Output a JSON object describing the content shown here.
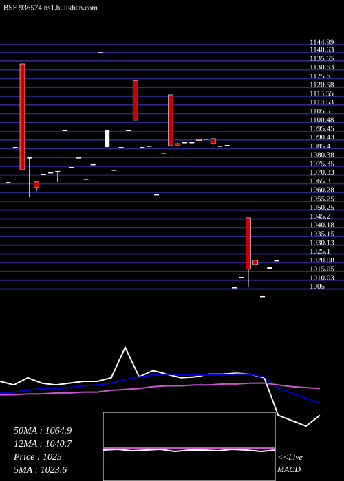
{
  "chart_data": [
    {
      "type": "candlestick",
      "title": "BSE 936574 ns1.bullkhan.com",
      "ylim": [
        999.3,
        1152.9
      ],
      "yticks": [
        1144.99,
        1140.63,
        1135.65,
        1130.63,
        1125.6,
        1120.58,
        1115.55,
        1110.53,
        1105.5,
        1100.48,
        1095.45,
        1090.43,
        1085.4,
        1080.38,
        1075.35,
        1070.33,
        1065.3,
        1060.28,
        1055.25,
        1050.25,
        1045.2,
        1040.18,
        1035.15,
        1030.13,
        1025.1,
        1020.08,
        1015.05,
        1010.03,
        1005
      ],
      "grid": true,
      "grid_color": "#2a2a8c",
      "up_color": "#ffffff",
      "down_color": "#cc0000",
      "candles": [
        {
          "open": 1066.2,
          "high": 1066.2,
          "low": 1066.2,
          "close": 1066.2
        },
        {
          "open": 1086.3,
          "high": 1086.3,
          "low": 1086.3,
          "close": 1086.3
        },
        {
          "open": 1134,
          "high": 1134,
          "low": 1073.3,
          "close": 1073.3
        },
        {
          "open": 1080.4,
          "high": 1080.4,
          "low": 1057.6,
          "close": 1080.4
        },
        {
          "open": 1066.3,
          "high": 1066.3,
          "low": 1061,
          "close": 1063.1
        },
        {
          "open": 1071,
          "high": 1071,
          "low": 1071,
          "close": 1071
        },
        {
          "open": 1071.8,
          "high": 1071.8,
          "low": 1071.8,
          "close": 1071.8
        },
        {
          "open": 1071.8,
          "high": 1072.6,
          "low": 1066.2,
          "close": 1072.6
        },
        {
          "open": 1096.2,
          "high": 1096.2,
          "low": 1096.2,
          "close": 1096.2
        },
        {
          "open": 1074.9,
          "high": 1074.9,
          "low": 1074.9,
          "close": 1074.9
        },
        {
          "open": 1080.4,
          "high": 1080.4,
          "low": 1080.4,
          "close": 1080.4
        },
        {
          "open": 1068.2,
          "high": 1068.2,
          "low": 1068.2,
          "close": 1068.2
        },
        {
          "open": 1076.5,
          "high": 1076.5,
          "low": 1076.5,
          "close": 1076.5
        },
        {
          "open": 1141,
          "high": 1141,
          "low": 1141,
          "close": 1141
        },
        {
          "open": 1086.3,
          "high": 1096.2,
          "low": 1086.3,
          "close": 1096.2
        },
        {
          "open": 1073.3,
          "high": 1073.3,
          "low": 1073.3,
          "close": 1073.3
        },
        {
          "open": 1086.3,
          "high": 1086.3,
          "low": 1086.3,
          "close": 1086.3
        },
        {
          "open": 1096.2,
          "high": 1096.2,
          "low": 1096.2,
          "close": 1096.2
        },
        {
          "open": 1124.5,
          "high": 1124.5,
          "low": 1101.7,
          "close": 1101.7
        },
        {
          "open": 1086.3,
          "high": 1086.3,
          "low": 1086.3,
          "close": 1086.3
        },
        {
          "open": 1087.1,
          "high": 1087.1,
          "low": 1087.1,
          "close": 1087.1
        },
        {
          "open": 1059.2,
          "high": 1059.2,
          "low": 1059.2,
          "close": 1059.2
        },
        {
          "open": 1083.2,
          "high": 1083.2,
          "low": 1083.2,
          "close": 1083.2
        },
        {
          "open": 1116.3,
          "high": 1116.3,
          "low": 1087.1,
          "close": 1087.1
        },
        {
          "open": 1088.3,
          "high": 1089.1,
          "low": 1087.1,
          "close": 1087.1
        },
        {
          "open": 1089.1,
          "high": 1089.1,
          "low": 1089.1,
          "close": 1089.1
        },
        {
          "open": 1089.1,
          "high": 1089.1,
          "low": 1089.1,
          "close": 1089.1
        },
        {
          "open": 1090.6,
          "high": 1090.6,
          "low": 1090.1,
          "close": 1090.1
        },
        {
          "open": 1091.1,
          "high": 1091.1,
          "low": 1091.1,
          "close": 1091.1
        },
        {
          "open": 1091.1,
          "high": 1091.1,
          "low": 1086.3,
          "close": 1088.3
        },
        {
          "open": 1087.1,
          "high": 1087.1,
          "low": 1087.1,
          "close": 1087.1
        },
        {
          "open": 1087.5,
          "high": 1087.5,
          "low": 1087.5,
          "close": 1087.5
        },
        {
          "open": 1006,
          "high": 1006,
          "low": 1006,
          "close": 1006
        },
        {
          "open": 1011.9,
          "high": 1011.9,
          "low": 1011.9,
          "close": 1011.9
        },
        {
          "open": 1045.8,
          "high": 1045.8,
          "low": 1006,
          "close": 1016.3
        },
        {
          "open": 1021.4,
          "high": 1021.4,
          "low": 1019,
          "close": 1019
        },
        {
          "open": 1000.9,
          "high": 1000.9,
          "low": 1000.9,
          "close": 1000.9
        },
        {
          "open": 1016.3,
          "high": 1017.4,
          "low": 1016.3,
          "close": 1017.4
        },
        {
          "open": 1021.4,
          "high": 1021.4,
          "low": 1021.4,
          "close": 1021.4
        }
      ]
    },
    {
      "type": "line",
      "ylim": [
        0,
        100
      ],
      "series": [
        {
          "color": "#ffffff",
          "values": [
            50,
            46,
            54,
            48,
            46,
            48,
            50,
            50,
            54,
            88,
            55,
            62,
            58,
            54,
            55,
            58,
            58,
            59,
            58,
            54,
            12,
            6,
            0,
            12
          ]
        },
        {
          "color": "#0000cc",
          "values": [
            37,
            38,
            40,
            42,
            42,
            43,
            45,
            46,
            48,
            52,
            55,
            57,
            58,
            57,
            57,
            57,
            57,
            58,
            58,
            55,
            42,
            37,
            31,
            26
          ]
        },
        {
          "color": "#cc55cc",
          "values": [
            35,
            35,
            36,
            36,
            37,
            37,
            38,
            38,
            40,
            41,
            42,
            44,
            45,
            45,
            46,
            46,
            47,
            47,
            48,
            48,
            46,
            44,
            43,
            42
          ]
        }
      ]
    },
    {
      "type": "line",
      "title": "MACD",
      "annotation": "<<Live",
      "ylim": [
        0,
        100
      ],
      "series": [
        {
          "color": "#ffffff",
          "values": [
            45,
            46,
            44,
            45,
            46,
            43,
            45,
            45,
            44,
            46,
            45,
            43,
            45
          ]
        },
        {
          "color": "#cc55cc",
          "values": [
            48,
            48,
            48,
            48,
            48,
            48,
            48,
            48,
            48,
            48,
            48,
            48,
            48
          ]
        }
      ]
    }
  ],
  "readouts": [
    "50MA : 1064.9",
    "12MA : 1040.7",
    "Price   : 1025",
    "5MA  : 1023.6"
  ]
}
